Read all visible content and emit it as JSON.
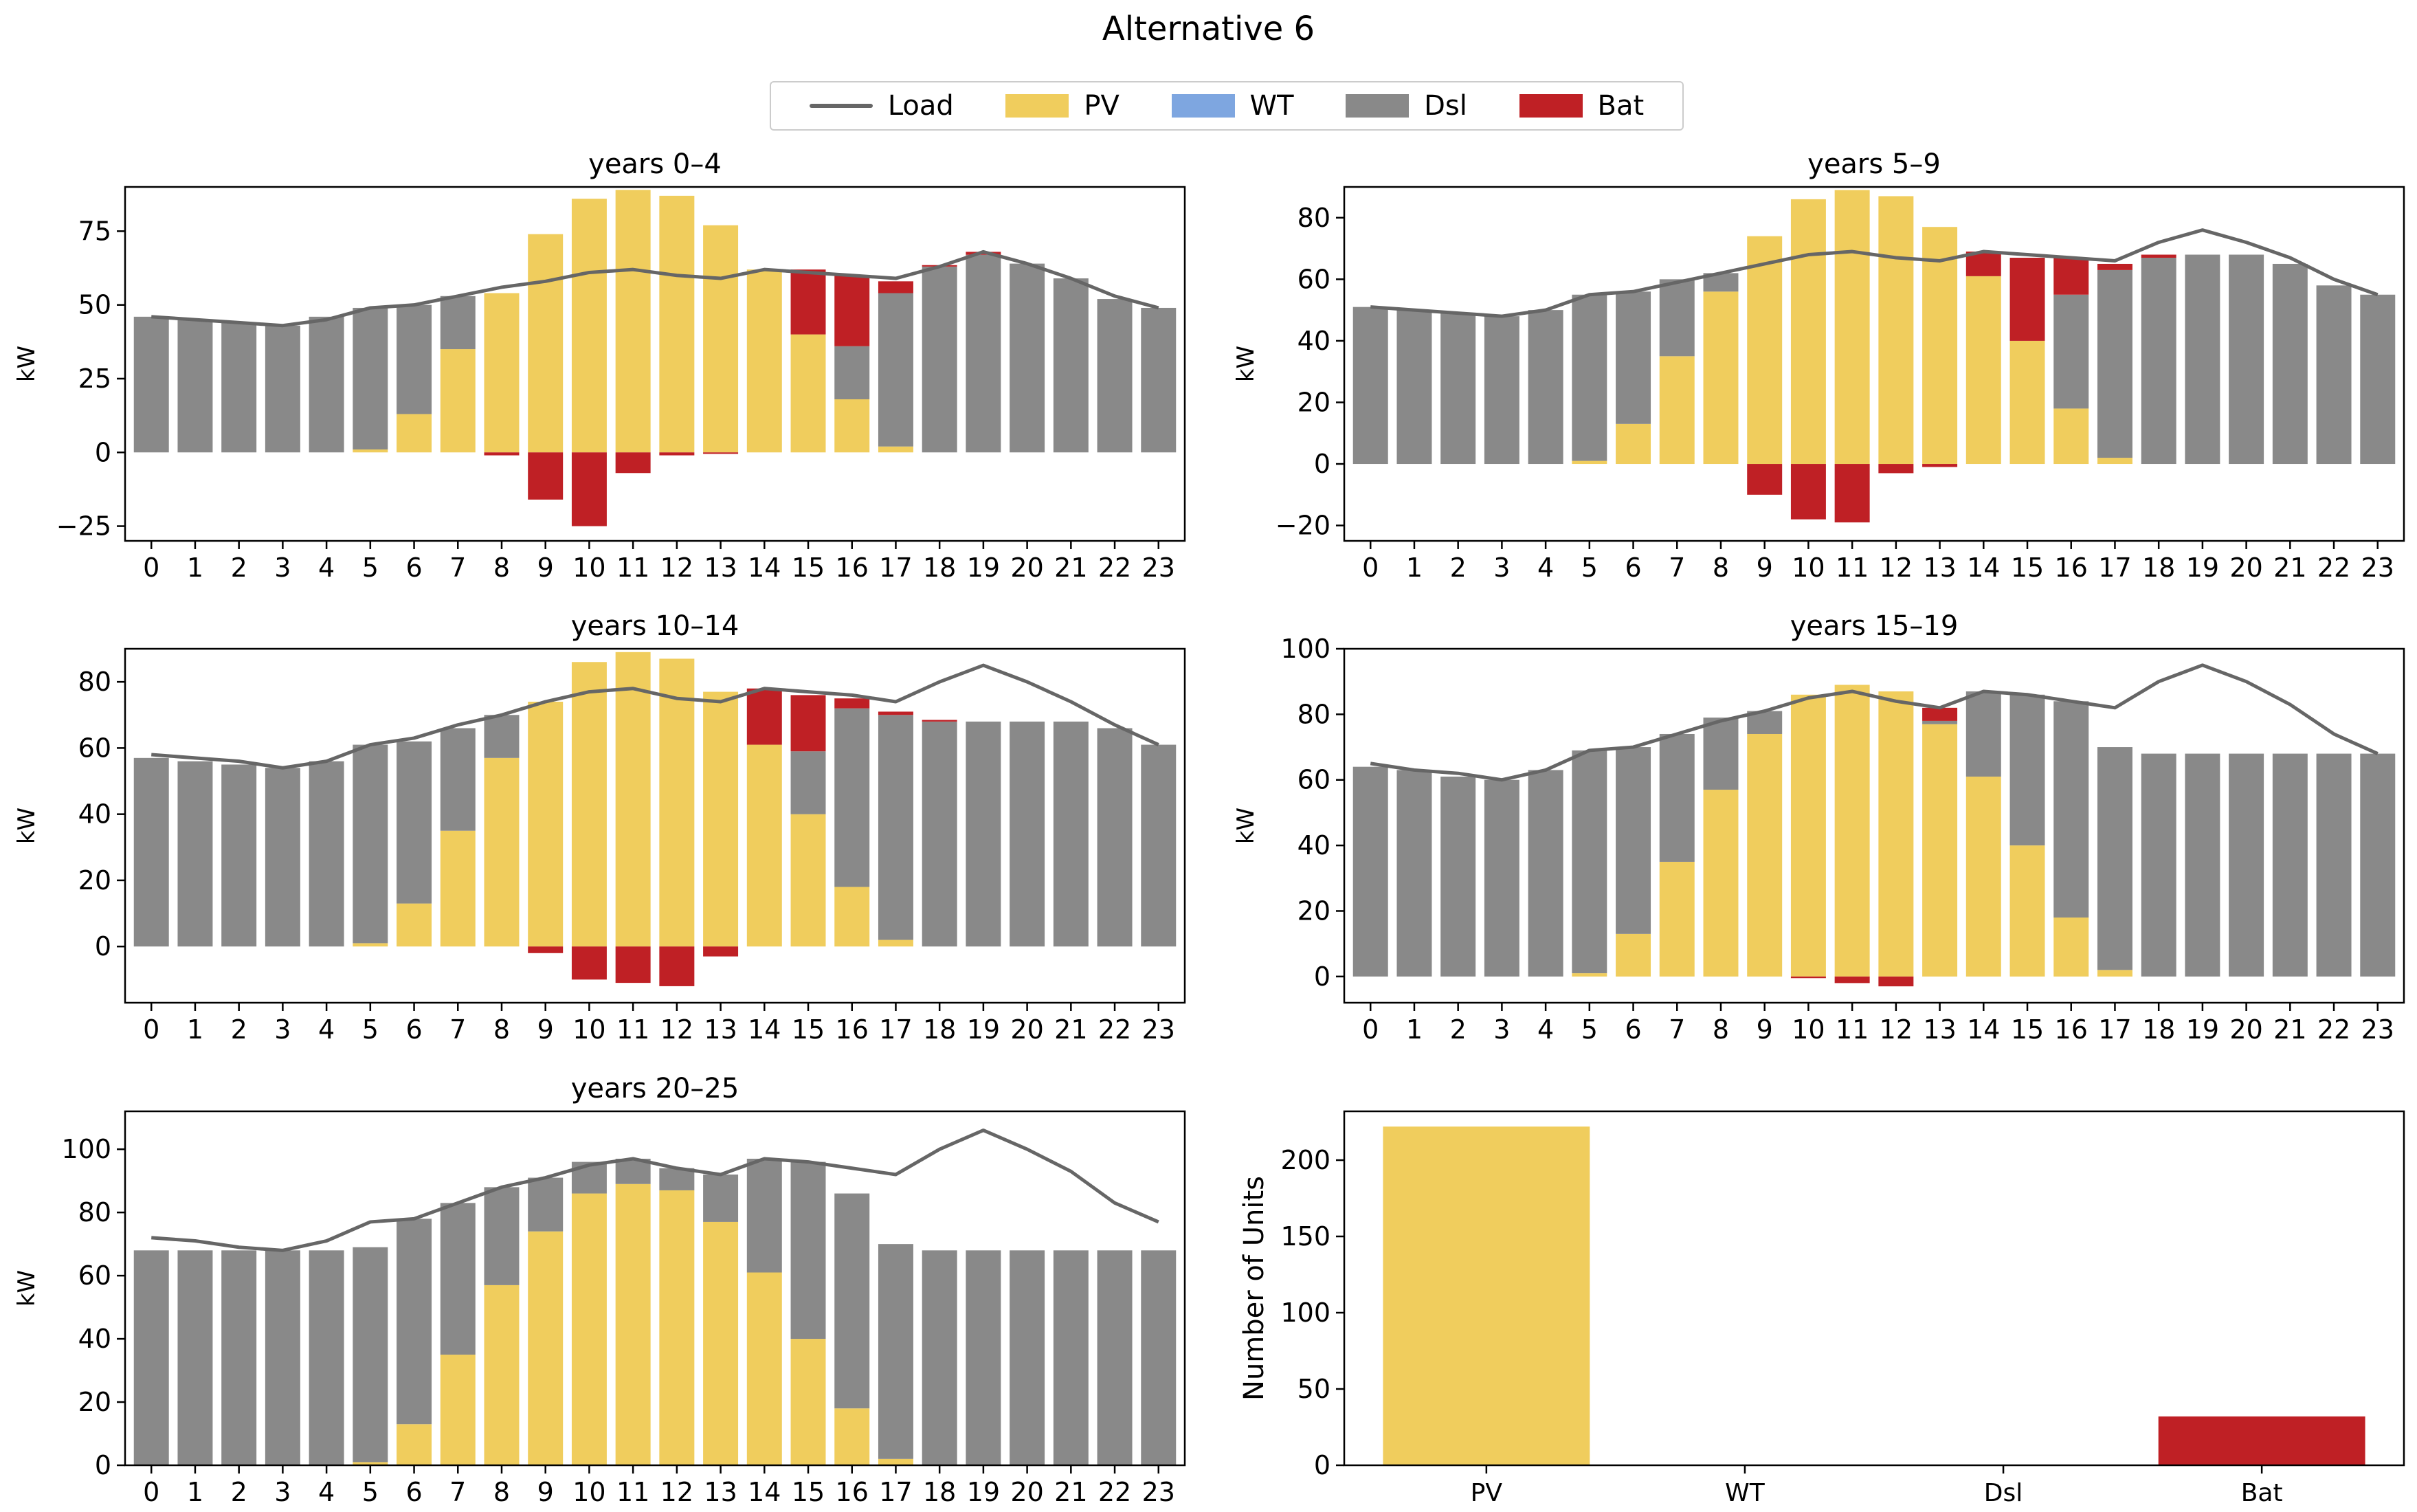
{
  "figure_title": "Alternative 6",
  "legend": [
    {
      "label": "Load",
      "kind": "line",
      "color": "#666666"
    },
    {
      "label": "PV",
      "kind": "patch",
      "color": "#f0cd5d"
    },
    {
      "label": "WT",
      "kind": "patch",
      "color": "#7ea6e0"
    },
    {
      "label": "Dsl",
      "kind": "patch",
      "color": "#898989"
    },
    {
      "label": "Bat",
      "kind": "patch",
      "color": "#bf2025"
    }
  ],
  "colors": {
    "pv": "#f0cd5d",
    "wt": "#7ea6e0",
    "dsl": "#898989",
    "bat": "#bf2025",
    "load": "#666666"
  },
  "chart_data": [
    {
      "type": "bar",
      "stacked": true,
      "title": "years 0–4",
      "ylabel": "kW",
      "xlabel": "",
      "ylim": [
        -30,
        90
      ],
      "yticks": [
        75,
        50,
        25,
        0,
        -25
      ],
      "ytick_labels": [
        "75",
        "50",
        "25",
        "0",
        "−25"
      ],
      "categories": [
        "0",
        "1",
        "2",
        "3",
        "4",
        "5",
        "6",
        "7",
        "8",
        "9",
        "10",
        "11",
        "12",
        "13",
        "14",
        "15",
        "16",
        "17",
        "18",
        "19",
        "20",
        "21",
        "22",
        "23"
      ],
      "series": [
        {
          "name": "PV",
          "values": [
            0,
            0,
            0,
            0,
            0,
            1,
            13,
            35,
            54,
            74,
            86,
            89,
            87,
            77,
            62,
            40,
            18,
            2,
            0,
            0,
            0,
            0,
            0,
            0
          ]
        },
        {
          "name": "WT",
          "values": [
            0,
            0,
            0,
            0,
            0,
            0,
            0,
            0,
            0,
            0,
            0,
            0,
            0,
            0,
            0,
            0,
            0,
            0,
            0,
            0,
            0,
            0,
            0,
            0
          ]
        },
        {
          "name": "Dsl",
          "values": [
            46,
            45,
            44,
            43,
            46,
            48,
            37,
            18,
            0,
            0,
            0,
            0,
            0,
            0,
            0,
            0,
            18,
            52,
            63,
            67,
            64,
            59,
            52,
            49
          ]
        },
        {
          "name": "Bat",
          "values": [
            0,
            0,
            0,
            0,
            0,
            0,
            0,
            0,
            -1,
            -16,
            -25,
            -7,
            -1,
            -0.5,
            0,
            22,
            24,
            4,
            0.5,
            1,
            0,
            0,
            0,
            0
          ]
        }
      ],
      "load": [
        46,
        45,
        44,
        43,
        45,
        49,
        50,
        53,
        56,
        58,
        61,
        62,
        60,
        59,
        62,
        61,
        60,
        59,
        63,
        68,
        64,
        59,
        53,
        49
      ]
    },
    {
      "type": "bar",
      "stacked": true,
      "title": "years 5–9",
      "ylabel": "kW",
      "xlabel": "",
      "ylim": [
        -25,
        90
      ],
      "yticks": [
        80,
        60,
        40,
        20,
        0,
        -20
      ],
      "ytick_labels": [
        "80",
        "60",
        "40",
        "20",
        "0",
        "−20"
      ],
      "categories": [
        "0",
        "1",
        "2",
        "3",
        "4",
        "5",
        "6",
        "7",
        "8",
        "9",
        "10",
        "11",
        "12",
        "13",
        "14",
        "15",
        "16",
        "17",
        "18",
        "19",
        "20",
        "21",
        "22",
        "23"
      ],
      "series": [
        {
          "name": "PV",
          "values": [
            0,
            0,
            0,
            0,
            0,
            1,
            13,
            35,
            56,
            74,
            86,
            89,
            87,
            77,
            61,
            40,
            18,
            2,
            0,
            0,
            0,
            0,
            0,
            0
          ]
        },
        {
          "name": "WT",
          "values": [
            0,
            0,
            0,
            0,
            0,
            0,
            0,
            0,
            0,
            0,
            0,
            0,
            0,
            0,
            0,
            0,
            0,
            0,
            0,
            0,
            0,
            0,
            0,
            0
          ]
        },
        {
          "name": "Dsl",
          "values": [
            51,
            50,
            49,
            48,
            50,
            54,
            43,
            25,
            6,
            0,
            0,
            0,
            0,
            0,
            0,
            0,
            37,
            61,
            67,
            68,
            68,
            65,
            58,
            55
          ]
        },
        {
          "name": "Bat",
          "values": [
            0,
            0,
            0,
            0,
            0,
            0,
            0,
            0,
            0,
            -10,
            -18,
            -19,
            -3,
            -1,
            8,
            27,
            12,
            2,
            1,
            0,
            0,
            0,
            0,
            0
          ]
        }
      ],
      "load": [
        51,
        50,
        49,
        48,
        50,
        55,
        56,
        59,
        62,
        65,
        68,
        69,
        67,
        66,
        69,
        68,
        67,
        66,
        72,
        76,
        72,
        67,
        60,
        55
      ]
    },
    {
      "type": "bar",
      "stacked": true,
      "title": "years 10–14",
      "ylabel": "kW",
      "xlabel": "",
      "ylim": [
        -17,
        90
      ],
      "yticks": [
        80,
        60,
        40,
        20,
        0
      ],
      "ytick_labels": [
        "80",
        "60",
        "40",
        "20",
        "0"
      ],
      "categories": [
        "0",
        "1",
        "2",
        "3",
        "4",
        "5",
        "6",
        "7",
        "8",
        "9",
        "10",
        "11",
        "12",
        "13",
        "14",
        "15",
        "16",
        "17",
        "18",
        "19",
        "20",
        "21",
        "22",
        "23"
      ],
      "series": [
        {
          "name": "PV",
          "values": [
            0,
            0,
            0,
            0,
            0,
            1,
            13,
            35,
            57,
            74,
            86,
            89,
            87,
            77,
            61,
            40,
            18,
            2,
            0,
            0,
            0,
            0,
            0,
            0
          ]
        },
        {
          "name": "WT",
          "values": [
            0,
            0,
            0,
            0,
            0,
            0,
            0,
            0,
            0,
            0,
            0,
            0,
            0,
            0,
            0,
            0,
            0,
            0,
            0,
            0,
            0,
            0,
            0,
            0
          ]
        },
        {
          "name": "Dsl",
          "values": [
            57,
            56,
            55,
            54,
            56,
            60,
            49,
            31,
            13,
            0,
            0,
            0,
            0,
            0,
            0,
            19,
            54,
            68,
            68,
            68,
            68,
            68,
            66,
            61
          ]
        },
        {
          "name": "Bat",
          "values": [
            0,
            0,
            0,
            0,
            0,
            0,
            0,
            0,
            0,
            -2,
            -10,
            -11,
            -12,
            -3,
            17,
            17,
            3,
            1,
            0.5,
            0,
            0,
            0,
            0,
            0
          ]
        }
      ],
      "load": [
        58,
        57,
        56,
        54,
        56,
        61,
        63,
        67,
        70,
        74,
        77,
        78,
        75,
        74,
        78,
        77,
        76,
        74,
        80,
        85,
        80,
        74,
        67,
        61
      ]
    },
    {
      "type": "bar",
      "stacked": true,
      "title": "years 15–19",
      "ylabel": "kW",
      "xlabel": "",
      "ylim": [
        -8,
        100
      ],
      "yticks": [
        100,
        80,
        60,
        40,
        20,
        0
      ],
      "ytick_labels": [
        "100",
        "80",
        "60",
        "40",
        "20",
        "0"
      ],
      "categories": [
        "0",
        "1",
        "2",
        "3",
        "4",
        "5",
        "6",
        "7",
        "8",
        "9",
        "10",
        "11",
        "12",
        "13",
        "14",
        "15",
        "16",
        "17",
        "18",
        "19",
        "20",
        "21",
        "22",
        "23"
      ],
      "series": [
        {
          "name": "PV",
          "values": [
            0,
            0,
            0,
            0,
            0,
            1,
            13,
            35,
            57,
            74,
            86,
            89,
            87,
            77,
            61,
            40,
            18,
            2,
            0,
            0,
            0,
            0,
            0,
            0
          ]
        },
        {
          "name": "WT",
          "values": [
            0,
            0,
            0,
            0,
            0,
            0,
            0,
            0,
            0,
            0,
            0,
            0,
            0,
            0,
            0,
            0,
            0,
            0,
            0,
            0,
            0,
            0,
            0,
            0
          ]
        },
        {
          "name": "Dsl",
          "values": [
            64,
            63,
            61,
            60,
            63,
            68,
            57,
            39,
            22,
            7,
            0,
            0,
            0,
            1,
            26,
            46,
            66,
            68,
            68,
            68,
            68,
            68,
            68,
            68
          ]
        },
        {
          "name": "Bat",
          "values": [
            0,
            0,
            0,
            0,
            0,
            0,
            0,
            0,
            0,
            0,
            -0.5,
            -2,
            -3,
            4,
            0,
            0,
            0,
            0,
            0,
            0,
            0,
            0,
            0,
            0
          ]
        }
      ],
      "load": [
        65,
        63,
        62,
        60,
        63,
        69,
        70,
        74,
        78,
        81,
        85,
        87,
        84,
        82,
        87,
        86,
        84,
        82,
        90,
        95,
        90,
        83,
        74,
        68
      ]
    },
    {
      "type": "bar",
      "stacked": true,
      "title": "years 20–25",
      "ylabel": "kW",
      "xlabel": "",
      "ylim": [
        0,
        112
      ],
      "yticks": [
        100,
        80,
        60,
        40,
        20,
        0
      ],
      "ytick_labels": [
        "100",
        "80",
        "60",
        "40",
        "20",
        "0"
      ],
      "categories": [
        "0",
        "1",
        "2",
        "3",
        "4",
        "5",
        "6",
        "7",
        "8",
        "9",
        "10",
        "11",
        "12",
        "13",
        "14",
        "15",
        "16",
        "17",
        "18",
        "19",
        "20",
        "21",
        "22",
        "23"
      ],
      "series": [
        {
          "name": "PV",
          "values": [
            0,
            0,
            0,
            0,
            0,
            1,
            13,
            35,
            57,
            74,
            86,
            89,
            87,
            77,
            61,
            40,
            18,
            2,
            0,
            0,
            0,
            0,
            0,
            0
          ]
        },
        {
          "name": "WT",
          "values": [
            0,
            0,
            0,
            0,
            0,
            0,
            0,
            0,
            0,
            0,
            0,
            0,
            0,
            0,
            0,
            0,
            0,
            0,
            0,
            0,
            0,
            0,
            0,
            0
          ]
        },
        {
          "name": "Dsl",
          "values": [
            68,
            68,
            68,
            68,
            68,
            68,
            65,
            48,
            31,
            17,
            10,
            8,
            7,
            15,
            36,
            56,
            68,
            68,
            68,
            68,
            68,
            68,
            68,
            68
          ]
        },
        {
          "name": "Bat",
          "values": [
            0,
            0,
            0,
            0,
            0,
            0,
            0,
            0,
            0,
            0,
            0,
            0,
            0,
            0,
            0,
            0,
            0,
            0,
            0,
            0,
            0,
            0,
            0,
            0
          ]
        }
      ],
      "load": [
        72,
        71,
        69,
        68,
        71,
        77,
        78,
        83,
        88,
        91,
        95,
        97,
        94,
        92,
        97,
        96,
        94,
        92,
        100,
        106,
        100,
        93,
        83,
        77
      ]
    },
    {
      "type": "bar",
      "title": "",
      "xlabel": "",
      "ylabel": "Number of Units",
      "ylim": [
        0,
        232
      ],
      "yticks": [
        200,
        150,
        100,
        50,
        0
      ],
      "ytick_labels": [
        "200",
        "150",
        "100",
        "50",
        "0"
      ],
      "categories": [
        "PV",
        "WT",
        "Dsl",
        "Bat"
      ],
      "values": [
        222,
        0,
        0,
        32
      ],
      "bar_colors": [
        "#f0cd5d",
        "#7ea6e0",
        "#898989",
        "#bf2025"
      ]
    }
  ]
}
